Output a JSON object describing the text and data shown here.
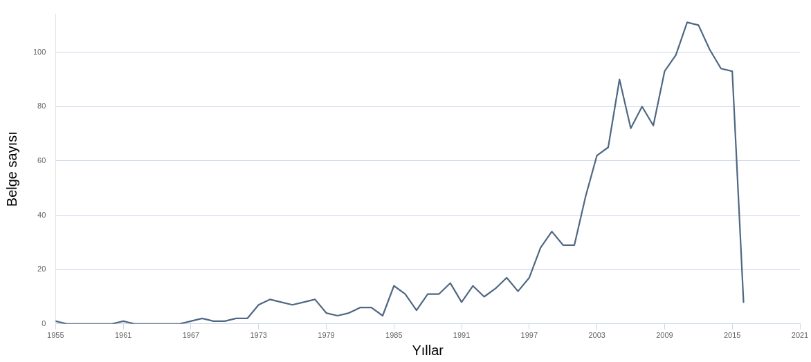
{
  "chart_data": {
    "type": "line",
    "xlabel": "Yıllar",
    "ylabel": "Belge sayısı",
    "x": [
      1955,
      1956,
      1957,
      1958,
      1959,
      1960,
      1961,
      1962,
      1963,
      1964,
      1965,
      1966,
      1967,
      1968,
      1969,
      1970,
      1971,
      1972,
      1973,
      1974,
      1975,
      1976,
      1977,
      1978,
      1979,
      1980,
      1981,
      1982,
      1983,
      1984,
      1985,
      1986,
      1987,
      1988,
      1989,
      1990,
      1991,
      1992,
      1993,
      1994,
      1995,
      1996,
      1997,
      1998,
      1999,
      2000,
      2001,
      2002,
      2003,
      2004,
      2005,
      2006,
      2007,
      2008,
      2009,
      2010,
      2011,
      2012,
      2013,
      2014,
      2015,
      2016
    ],
    "series": [
      {
        "color": "#4f6782",
        "values": [
          1,
          0,
          0,
          0,
          0,
          0,
          1,
          0,
          0,
          0,
          0,
          0,
          1,
          2,
          1,
          1,
          2,
          2,
          7,
          9,
          8,
          7,
          8,
          9,
          4,
          3,
          4,
          6,
          6,
          3,
          14,
          11,
          5,
          11,
          11,
          15,
          8,
          14,
          10,
          13,
          17,
          12,
          17,
          28,
          34,
          29,
          29,
          47,
          62,
          65,
          90,
          72,
          80,
          73,
          93,
          99,
          111,
          110,
          101,
          94,
          93,
          8
        ]
      }
    ],
    "xlim": [
      1955,
      2021
    ],
    "xticks": [
      1955,
      1961,
      1967,
      1973,
      1979,
      1985,
      1991,
      1997,
      2003,
      2009,
      2015,
      2021
    ],
    "ylim": [
      0,
      114
    ],
    "yticks": [
      0,
      20,
      40,
      60,
      80,
      100
    ],
    "grid": "y",
    "legend": false,
    "marker": "none",
    "line_style": "solid"
  }
}
